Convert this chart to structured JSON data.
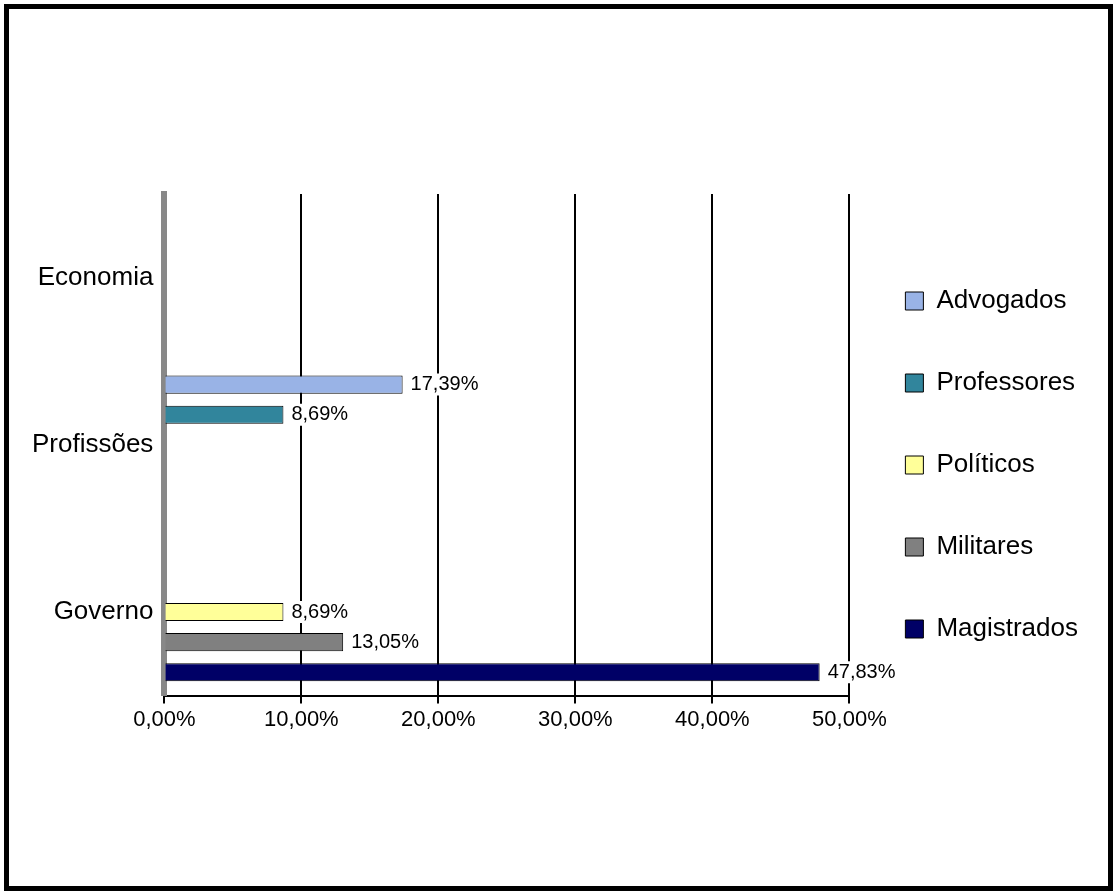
{
  "chart_data": {
    "type": "bar",
    "orientation": "horizontal",
    "categories": [
      "Economia",
      "Profissões",
      "Governo"
    ],
    "series": [
      {
        "name": "Advogados",
        "color": "#99b3e6",
        "values": [
          null,
          17.39,
          null
        ],
        "value_labels": [
          null,
          "17,39%",
          null
        ]
      },
      {
        "name": "Professores",
        "color": "#31859c",
        "values": [
          null,
          8.69,
          null
        ],
        "value_labels": [
          null,
          "8,69%",
          null
        ]
      },
      {
        "name": "Políticos",
        "color": "#ffff99",
        "values": [
          null,
          null,
          8.69
        ],
        "value_labels": [
          null,
          null,
          "8,69%"
        ]
      },
      {
        "name": "Militares",
        "color": "#808080",
        "values": [
          null,
          null,
          13.05
        ],
        "value_labels": [
          null,
          null,
          "13,05%"
        ]
      },
      {
        "name": "Magistrados",
        "color": "#000066",
        "values": [
          null,
          null,
          47.83
        ],
        "value_labels": [
          null,
          null,
          "47,83%"
        ]
      }
    ],
    "xlim": [
      0,
      50
    ],
    "xticks": [
      {
        "value": 0,
        "label": "0,00%"
      },
      {
        "value": 10,
        "label": "10,00%"
      },
      {
        "value": 20,
        "label": "20,00%"
      },
      {
        "value": 30,
        "label": "30,00%"
      },
      {
        "value": 40,
        "label": "40,00%"
      },
      {
        "value": 50,
        "label": "50,00%"
      }
    ],
    "grid": "x",
    "legend": "right"
  }
}
